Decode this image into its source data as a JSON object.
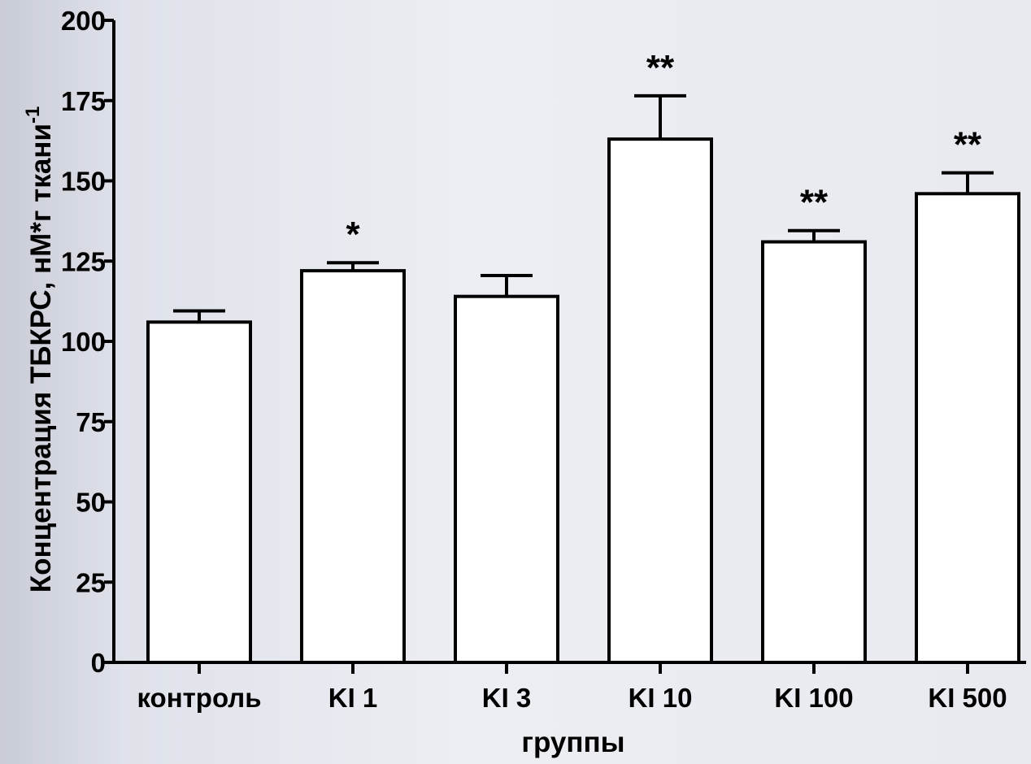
{
  "chart_data": {
    "type": "bar",
    "categories": [
      "контроль",
      "KI 1",
      "KI 3",
      "KI 10",
      "KI 100",
      "KI 500"
    ],
    "values": [
      106,
      122,
      114,
      163,
      131,
      146
    ],
    "errors": [
      3.5,
      2.5,
      6.5,
      13.5,
      3.5,
      6.5
    ],
    "significance": [
      "",
      "*",
      "",
      "**",
      "**",
      "**"
    ],
    "xlabel": "группы",
    "ylabel": "Концентрация ТБКРС, нМ*г ткани",
    "ylabel_superscript": "-1",
    "ylim": [
      0,
      200
    ],
    "yticks": [
      "0",
      "25",
      "50",
      "75",
      "100",
      "125",
      "150",
      "175",
      "200"
    ],
    "grid": false,
    "bar_color": "#ffffff",
    "edge_color": "#000000"
  }
}
